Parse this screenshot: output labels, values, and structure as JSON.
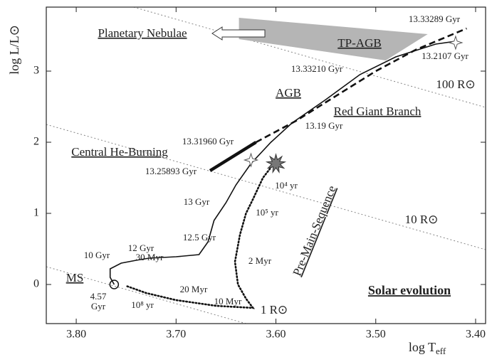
{
  "chart_data": {
    "type": "line",
    "x_label": {
      "text": "log T",
      "subscript": "eff"
    },
    "y_label": "log L/L⊙",
    "xlim": [
      3.83,
      3.39
    ],
    "ylim": [
      -0.55,
      3.9
    ],
    "xticks": [
      {
        "value": 3.8,
        "label": "3.80"
      },
      {
        "value": 3.7,
        "label": "3.70"
      },
      {
        "value": 3.6,
        "label": "3.60"
      },
      {
        "value": 3.5,
        "label": "3.50"
      },
      {
        "value": 3.4,
        "label": "3.40"
      }
    ],
    "yticks": [
      0,
      1,
      2,
      3
    ],
    "series": [
      {
        "color": "#111111",
        "style": "solid",
        "x": [
          3.762,
          3.766,
          3.766,
          3.755,
          3.74,
          3.727,
          3.7,
          3.677,
          3.668,
          3.662,
          3.65,
          3.64,
          3.625,
          3.605,
          3.584,
          3.55,
          3.516,
          3.48,
          3.44,
          3.42
        ],
        "y": [
          0,
          0.1,
          0.22,
          0.3,
          0.34,
          0.37,
          0.39,
          0.42,
          0.6,
          0.9,
          1.15,
          1.4,
          1.7,
          2.0,
          2.27,
          2.6,
          2.95,
          3.2,
          3.38,
          3.42
        ]
      },
      {
        "color": "#111111",
        "style": "thick",
        "x": [
          3.666,
          3.62
        ],
        "y": [
          1.6,
          2.0
        ]
      },
      {
        "color": "#111111",
        "style": "dashed",
        "x": [
          3.62,
          3.58,
          3.54,
          3.5,
          3.46,
          3.409
        ],
        "y": [
          2.0,
          2.3,
          2.65,
          3.0,
          3.3,
          3.6
        ]
      },
      {
        "color": "#111111",
        "style": "dotted",
        "x": [
          3.602,
          3.613,
          3.623,
          3.63,
          3.636,
          3.641,
          3.638,
          3.63,
          3.623,
          3.66,
          3.7,
          3.73,
          3.75
        ],
        "y": [
          1.7,
          1.5,
          1.2,
          1.0,
          0.7,
          0.32,
          0.0,
          -0.2,
          -0.33,
          -0.3,
          -0.22,
          -0.12,
          -0.02
        ]
      }
    ],
    "radius_lines": [
      {
        "color": "#888888",
        "x": [
          3.83,
          3.63
        ],
        "y": [
          0.25,
          -0.55
        ]
      },
      {
        "color": "#888888",
        "x": [
          3.83,
          3.39
        ],
        "y": [
          2.25,
          0.49
        ]
      },
      {
        "color": "#888888",
        "x": [
          3.7425,
          3.39
        ],
        "y": [
          3.9,
          2.49
        ]
      }
    ],
    "region": {
      "color": "#b5b5b5",
      "x": [
        3.637,
        3.448,
        3.49,
        3.637
      ],
      "y": [
        3.75,
        3.52,
        3.15,
        3.45
      ]
    },
    "stars": {
      "color": "#ffffff",
      "x": [
        3.42,
        3.625
      ],
      "y": [
        3.4,
        1.75
      ]
    },
    "zams": {
      "x": 3.762,
      "y": 0
    },
    "protostar": {
      "color": "#777777",
      "x": 3.6,
      "y": 1.7
    },
    "annotations": [
      "Planetary Nebulae",
      "TP-AGB",
      "13.33289 Gyr",
      "13.2107 Gyr",
      "13.33210 Gyr",
      "100 R⊙",
      "AGB",
      "Red Giant Branch",
      "13.19 Gyr",
      "13.31960 Gyr",
      "Central He-Burning",
      "13.25893 Gyr",
      "10⁴ yr",
      "13 Gyr",
      "10⁵ yr",
      "10 R⊙",
      "12.5 Gyr",
      "12 Gyr",
      "10 Gyr",
      "2 Myr",
      "Pre-Main-Sequence",
      "30 Myr",
      "MS",
      "20 Myr",
      "10 Myr",
      "4.57",
      "Gyr",
      "10⁸ yr",
      "1 R⊙",
      "Solar evolution"
    ]
  }
}
